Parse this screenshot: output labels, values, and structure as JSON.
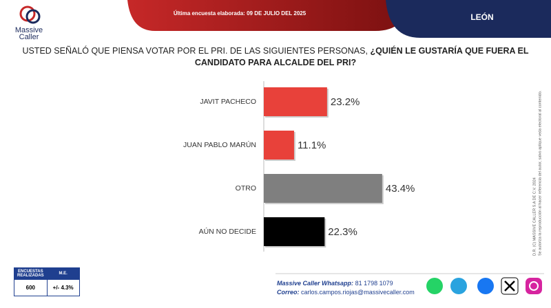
{
  "brand": {
    "name": "Massive",
    "name2": "Caller"
  },
  "header": {
    "survey_date": "Última encuesta elaborada: 09 DE JULIO DEL 2025",
    "location": "LEÓN"
  },
  "chart_data": {
    "type": "bar",
    "orientation": "horizontal",
    "question": "USTED SEÑALÓ QUE PIENSA VOTAR POR EL PRI. DE LAS SIGUIENTES PERSONAS, ",
    "question_emphasis": "¿QUIÉN LE GUSTARÍA QUE FUERA EL CANDIDATO PARA ALCALDE DEL PRI?",
    "categories": [
      "JAVIT PACHECO",
      "JUAN PABLO MARÚN",
      "OTRO",
      "AÚN NO DECIDE"
    ],
    "values": [
      23.2,
      11.1,
      43.4,
      22.3
    ],
    "value_labels": [
      "23.2%",
      "11.1%",
      "43.4%",
      "22.3%"
    ],
    "colors": [
      "#e8413a",
      "#e8413a",
      "#7f7f7f",
      "#000000"
    ]
  },
  "side_note": [
    "D.R. (C) MASSIVE CALLER S.A DE C.V. 2024",
    "Se autoriza la reproducción al hacer referencia del autor, salvo aplique veda electoral al contenido."
  ],
  "table": {
    "headers": [
      "ENCUESTAS REALIZADAS",
      "M.E."
    ],
    "rows": [
      [
        "600",
        "+/- 4.3%"
      ]
    ]
  },
  "footer": {
    "whatsapp_label": "Massive Caller Whatsapp:",
    "whatsapp": "81 1798 1079",
    "email_label": "Correo:",
    "email": "carlos.campos.riojas@massivecaller.com"
  }
}
